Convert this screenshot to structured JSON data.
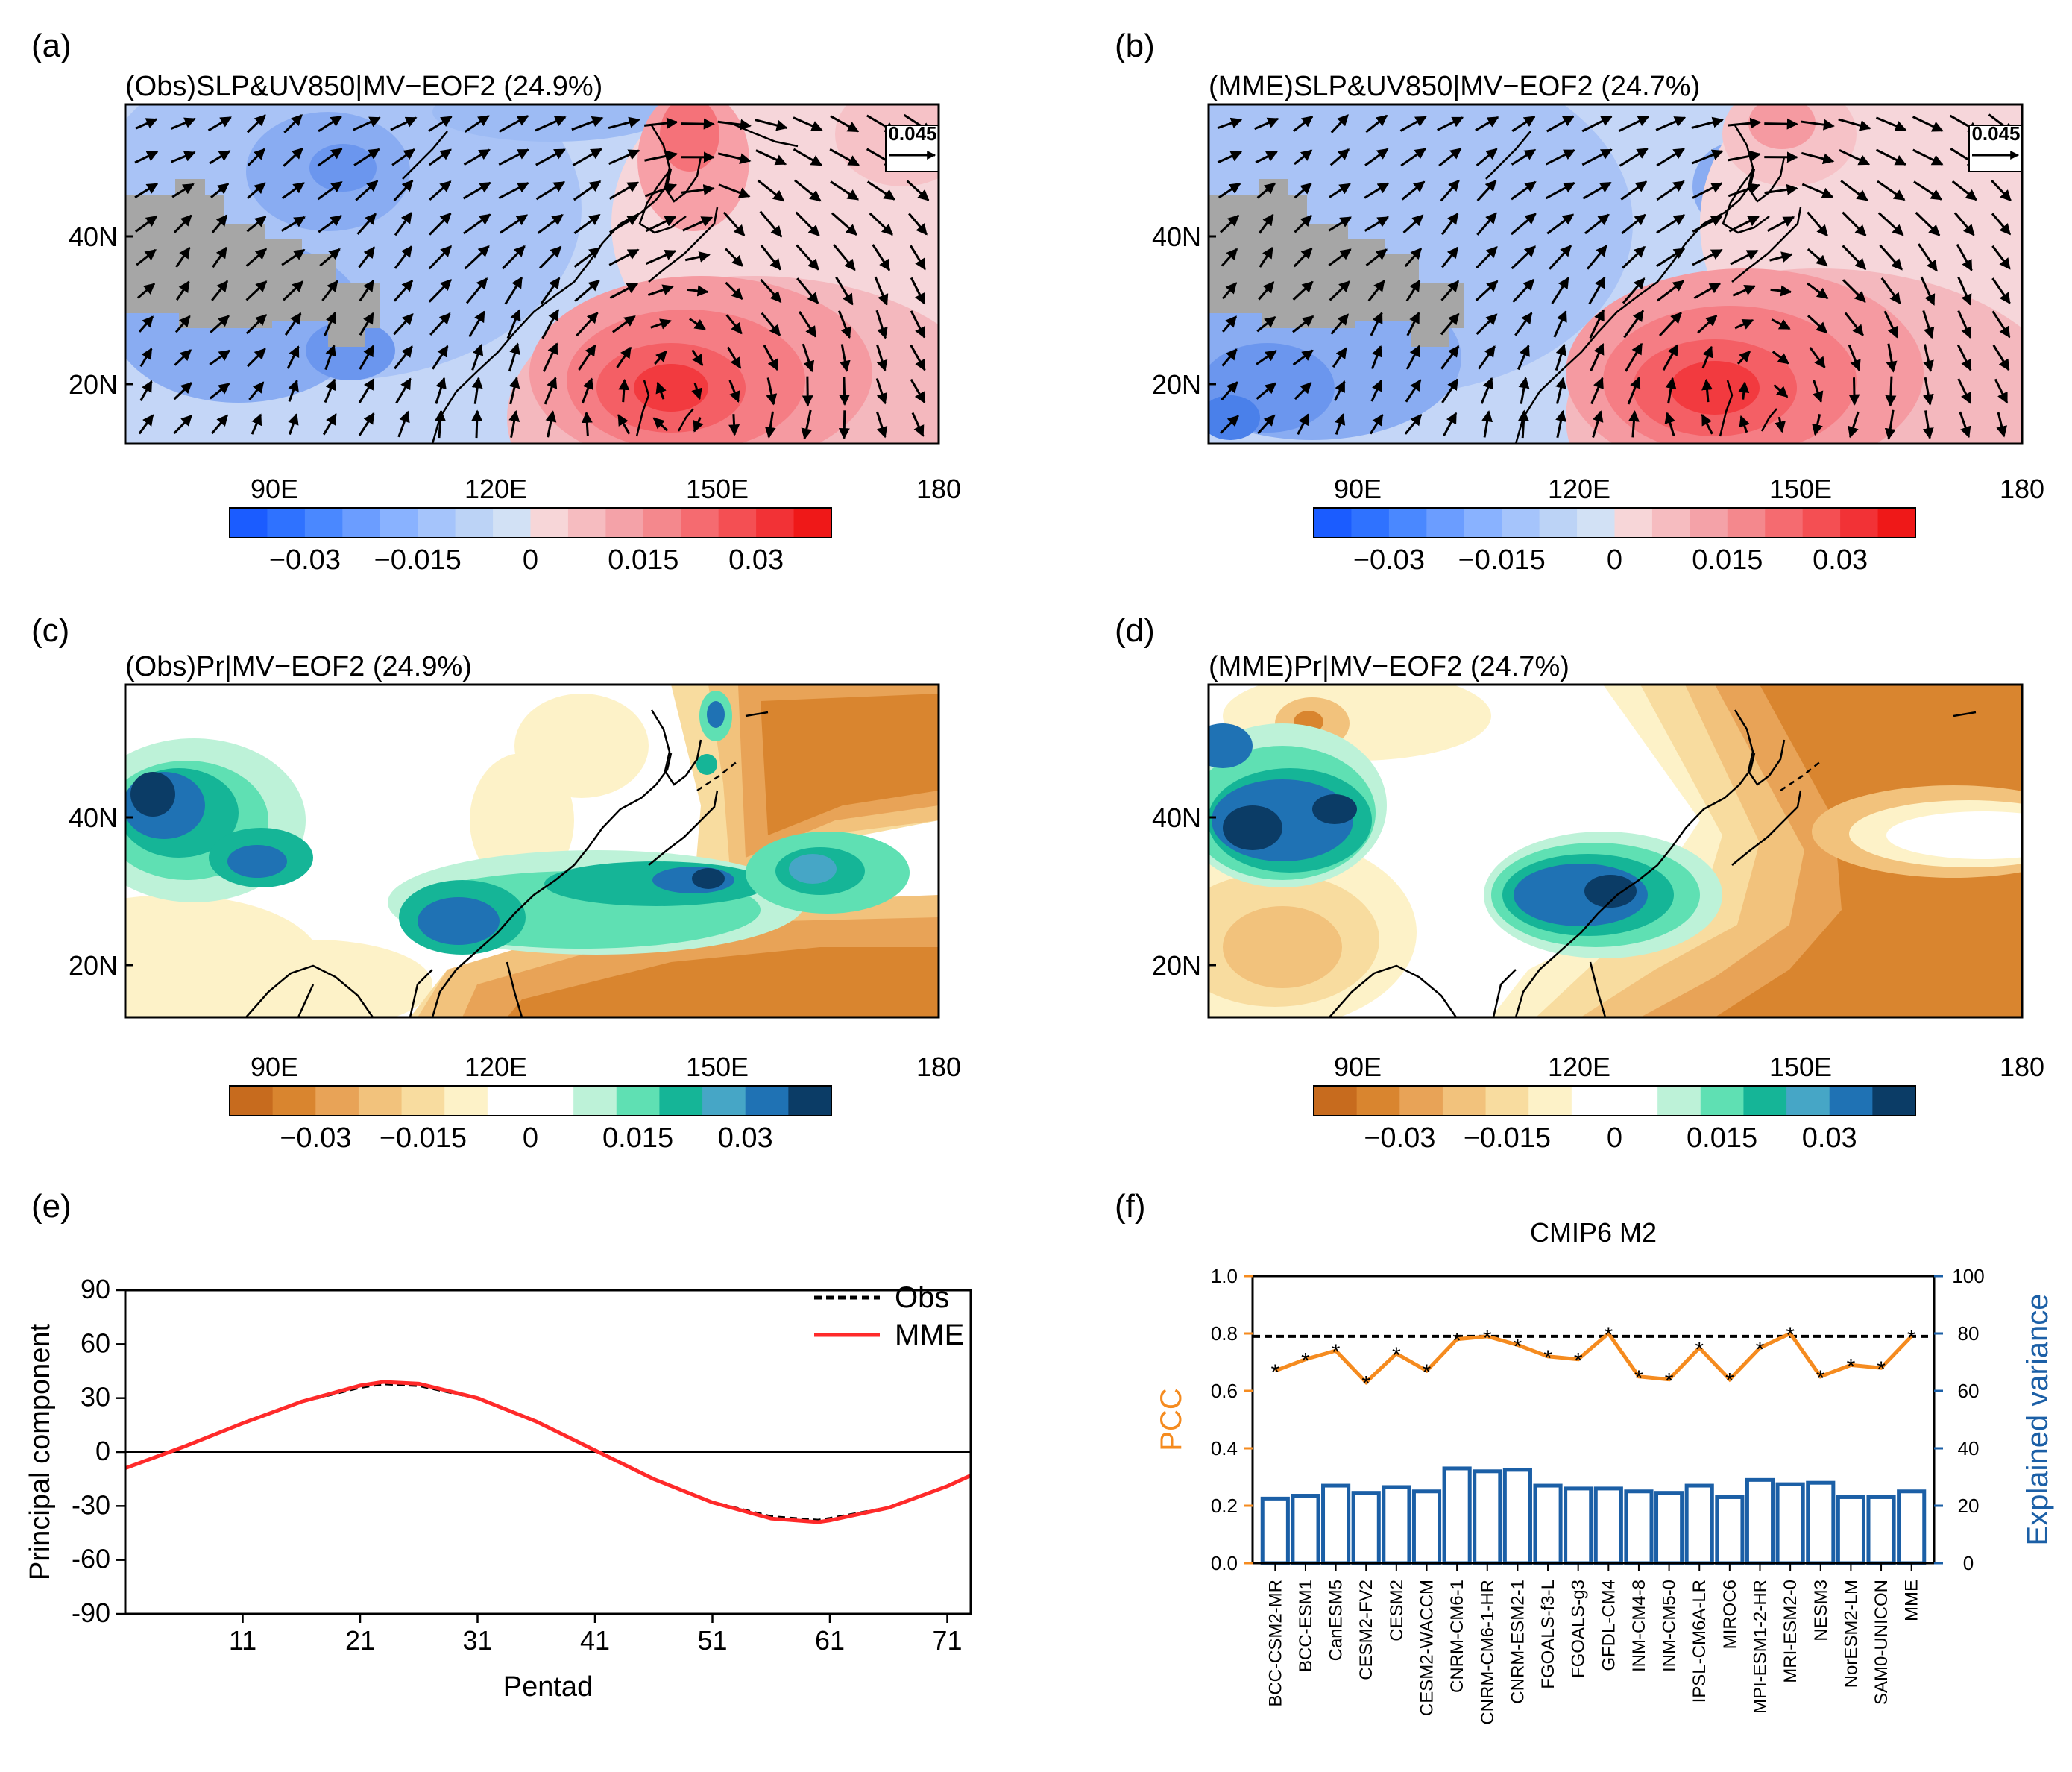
{
  "panels": [
    {
      "label": "(a)",
      "title": "(Obs)SLP&UV850|MV−EOF2 (24.9%)",
      "type": "slp_wind",
      "ref_vector": "0.045"
    },
    {
      "label": "(b)",
      "title": "(MME)SLP&UV850|MV−EOF2 (24.7%)",
      "type": "slp_wind",
      "ref_vector": "0.045"
    },
    {
      "label": "(c)",
      "title": "(Obs)Pr|MV−EOF2 (24.9%)",
      "type": "precip"
    },
    {
      "label": "(d)",
      "title": "(MME)Pr|MV−EOF2 (24.7%)",
      "type": "precip"
    }
  ],
  "map_axes": {
    "lon_labels": [
      "90E",
      "120E",
      "150E",
      "180"
    ],
    "lat_labels": [
      "40N",
      "20N"
    ]
  },
  "colorbars": {
    "slp": {
      "labels": [
        "−0.03",
        "−0.015",
        "0",
        "0.015",
        "0.03"
      ],
      "colors": [
        "#1b5cff",
        "#2f72ff",
        "#4a88ff",
        "#6b9dff",
        "#89b2ff",
        "#a5c4fb",
        "#bcd3f6",
        "#d2e1f5",
        "#f7d6d8",
        "#f6bcc0",
        "#f4a2a8",
        "#f4888d",
        "#f56b70",
        "#f44f53",
        "#f23236",
        "#ef1818"
      ]
    },
    "precip": {
      "labels": [
        "−0.03",
        "−0.015",
        "0",
        "0.015",
        "0.03"
      ],
      "colors": [
        "#c76b1e",
        "#d9852f",
        "#e8a357",
        "#f2c27c",
        "#f8dc9f",
        "#fdf2c8",
        "#ffffff",
        "#ffffff",
        "#bdf2d8",
        "#5fe0b3",
        "#15b597",
        "#46a6c6",
        "#1f72b4",
        "#0b3c66"
      ]
    }
  },
  "chart_data": [
    {
      "panel": "(e)",
      "type": "line",
      "xlabel": "Pentad",
      "ylabel": "Principal component",
      "xlim": [
        1,
        73
      ],
      "ylim": [
        -90,
        90
      ],
      "xticks": [
        11,
        21,
        31,
        41,
        51,
        61,
        71
      ],
      "yticks": [
        90,
        60,
        30,
        0,
        -30,
        -60,
        -90
      ],
      "series": [
        {
          "name": "Obs",
          "style": "dashed",
          "color": "#000000",
          "x": [
            1,
            6,
            11,
            16,
            21,
            23,
            26,
            31,
            36,
            41,
            46,
            51,
            56,
            60,
            61,
            66,
            71,
            73
          ],
          "values": [
            -9,
            3,
            16,
            28,
            36,
            38,
            37,
            30,
            17,
            1,
            -15,
            -28,
            -36,
            -38,
            -37,
            -31,
            -19,
            -13
          ]
        },
        {
          "name": "MME",
          "style": "solid",
          "color": "#ff2a2a",
          "x": [
            1,
            6,
            11,
            16,
            21,
            23,
            26,
            31,
            36,
            41,
            46,
            51,
            56,
            60,
            61,
            66,
            71,
            73
          ],
          "values": [
            -9,
            3,
            16,
            28,
            37,
            39,
            38,
            30,
            17,
            1,
            -15,
            -28,
            -37,
            -39,
            -38,
            -31,
            -19,
            -13
          ]
        }
      ]
    },
    {
      "panel": "(f)",
      "type": "bar",
      "title": "CMIP6 M2",
      "ylabel": "PCC",
      "y2label": "Explained variance",
      "ylim": [
        0,
        1.0
      ],
      "y2lim": [
        0,
        100
      ],
      "yticks": [
        "0.0",
        "0.2",
        "0.4",
        "0.6",
        "0.8",
        "1.0"
      ],
      "y2ticks": [
        "0",
        "20",
        "40",
        "60",
        "80",
        "100"
      ],
      "reference_line": 0.79,
      "categories": [
        "BCC-CSM2-MR",
        "BCC-ESM1",
        "CanESM5",
        "CESM2-FV2",
        "CESM2",
        "CESM2-WACCM",
        "CNRM-CM6-1",
        "CNRM-CM6-1-HR",
        "CNRM-ESM2-1",
        "FGOALS-f3-L",
        "FGOALS-g3",
        "GFDL-CM4",
        "INM-CM4-8",
        "INM-CM5-0",
        "IPSL-CM6A-LR",
        "MIROC6",
        "MPI-ESM1-2-HR",
        "MRI-ESM2-0",
        "NESM3",
        "NorESM2-LM",
        "SAM0-UNICON",
        "MME"
      ],
      "series": [
        {
          "name": "PCC",
          "axis": "left",
          "color": "#f58b1f",
          "values": [
            0.67,
            0.71,
            0.74,
            0.63,
            0.73,
            0.67,
            0.78,
            0.79,
            0.76,
            0.72,
            0.71,
            0.8,
            0.65,
            0.64,
            0.75,
            0.64,
            0.75,
            0.8,
            0.65,
            0.69,
            0.68,
            0.79
          ]
        },
        {
          "name": "Explained variance",
          "axis": "right",
          "color": "#1b5fa6",
          "values": [
            22.5,
            23.5,
            27,
            24.5,
            26.5,
            25,
            33,
            32,
            32.5,
            27,
            26,
            26,
            25,
            24.5,
            27,
            23,
            29,
            27.5,
            28,
            23,
            23,
            25
          ]
        }
      ]
    }
  ]
}
